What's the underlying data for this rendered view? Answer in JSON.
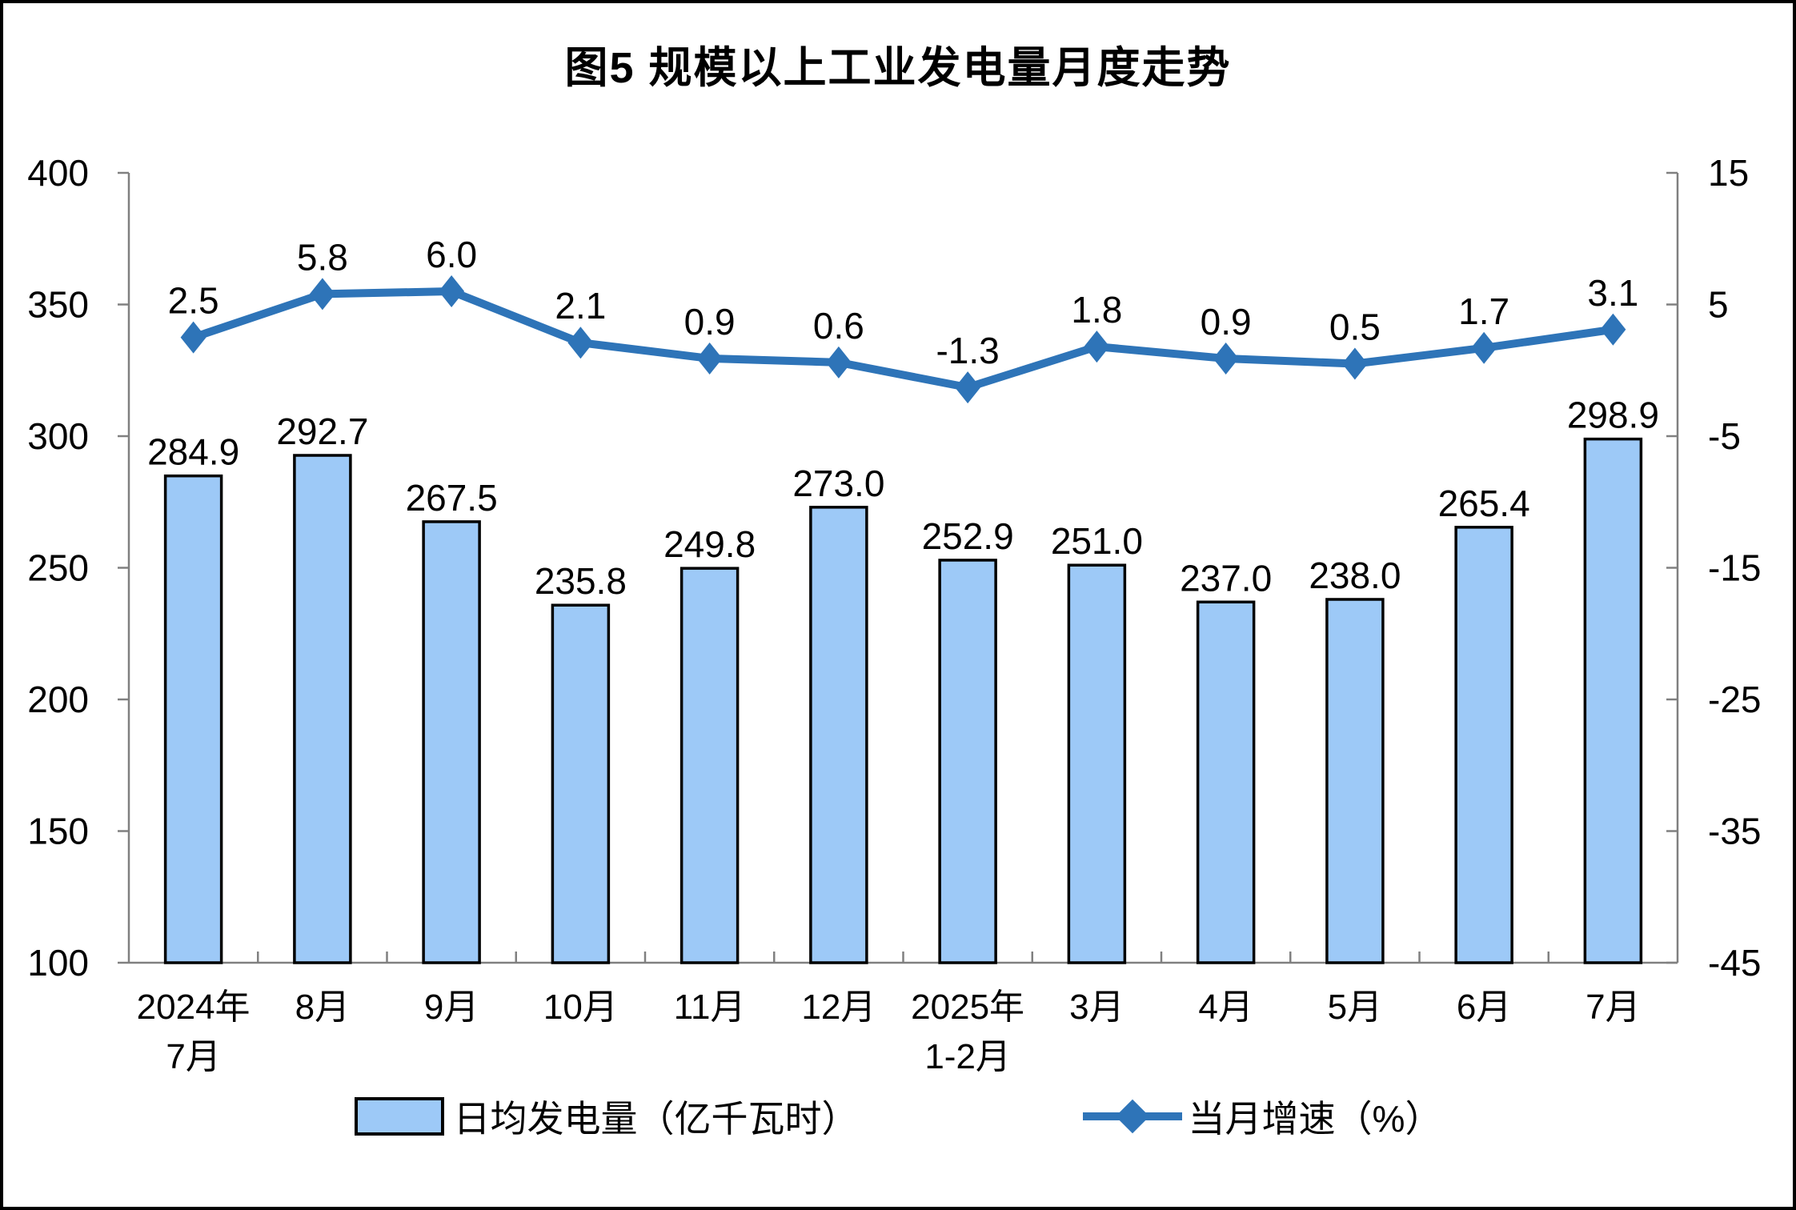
{
  "chart_data": {
    "type": "bar+line",
    "title": "图5 规模以上工业发电量月度走势",
    "categories": [
      [
        "2024年",
        "7月"
      ],
      [
        "8月"
      ],
      [
        "9月"
      ],
      [
        "10月"
      ],
      [
        "11月"
      ],
      [
        "12月"
      ],
      [
        "2025年",
        "1-2月"
      ],
      [
        "3月"
      ],
      [
        "4月"
      ],
      [
        "5月"
      ],
      [
        "6月"
      ],
      [
        "7月"
      ]
    ],
    "series": [
      {
        "name": "日均发电量（亿千瓦时）",
        "type": "bar",
        "axis": "left",
        "color": "#9DC9F7",
        "border_color": "#000000",
        "values": [
          284.9,
          292.7,
          267.5,
          235.8,
          249.8,
          273.0,
          252.9,
          251.0,
          237.0,
          238.0,
          265.4,
          298.9
        ],
        "labels": [
          "284.9",
          "292.7",
          "267.5",
          "235.8",
          "249.8",
          "273.0",
          "252.9",
          "251.0",
          "237.0",
          "238.0",
          "265.4",
          "298.9"
        ]
      },
      {
        "name": "当月增速（%）",
        "type": "line",
        "axis": "right",
        "color": "#2E74B8",
        "marker": "diamond",
        "values": [
          2.5,
          5.8,
          6.0,
          2.1,
          0.9,
          0.6,
          -1.3,
          1.8,
          0.9,
          0.5,
          1.7,
          3.1
        ],
        "labels": [
          "2.5",
          "5.8",
          "6.0",
          "2.1",
          "0.9",
          "0.6",
          "-1.3",
          "1.8",
          "0.9",
          "0.5",
          "1.7",
          "3.1"
        ]
      }
    ],
    "left_axis": {
      "min": 100,
      "max": 400,
      "step": 50,
      "tick_labels": [
        "400",
        "350",
        "300",
        "250",
        "200",
        "150",
        "100"
      ]
    },
    "right_axis": {
      "min": -45,
      "max": 15,
      "step": 10,
      "tick_labels": [
        "15",
        "5",
        "-5",
        "-15",
        "-25",
        "-35",
        "-45"
      ]
    },
    "grid": false,
    "legend_position": "bottom",
    "axis_color": "#808080",
    "text_color": "#000000",
    "background_color": "#FFFFFF"
  }
}
